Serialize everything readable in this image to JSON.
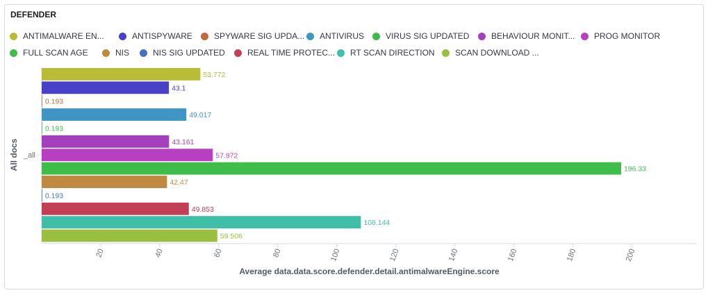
{
  "panel": {
    "title": "DEFENDER"
  },
  "legend": [
    {
      "label": "ANTIMALWARE EN...",
      "color": "#b9bc37"
    },
    {
      "label": "ANTISPYWARE",
      "color": "#4a3fc8"
    },
    {
      "label": "SPYWARE SIG UPDA...",
      "color": "#c06a3d"
    },
    {
      "label": "ANTIVIRUS",
      "color": "#3f95c3"
    },
    {
      "label": "VIRUS SIG UPDATED",
      "color": "#3fb94e"
    },
    {
      "label": "BEHAVIOUR MONIT...",
      "color": "#a43fbe"
    },
    {
      "label": "PROG MONITOR",
      "color": "#b83fc2"
    },
    {
      "label": "FULL SCAN AGE",
      "color": "#3fbd4a"
    },
    {
      "label": "NIS",
      "color": "#bf8a3f"
    },
    {
      "label": "NIS SIG UPDATED",
      "color": "#4370c2"
    },
    {
      "label": "REAL TIME PROTEC...",
      "color": "#c23f55"
    },
    {
      "label": "RT SCAN DIRECTION",
      "color": "#3fbfa8"
    },
    {
      "label": "SCAN DOWNLOAD ...",
      "color": "#98bf3f"
    }
  ],
  "chart_data": {
    "type": "bar",
    "orientation": "horizontal",
    "ylabel": "All docs",
    "category": "_all",
    "xlabel": "Average data.data.score.defender.detail.antimalwareEngine.score",
    "xlim": [
      0,
      222
    ],
    "xticks": [
      20,
      40,
      60,
      80,
      100,
      120,
      140,
      160,
      180,
      200
    ],
    "series": [
      {
        "name": "ANTIMALWARE EN...",
        "value": 53.772,
        "label": "53.772",
        "color": "#b9bc37"
      },
      {
        "name": "ANTISPYWARE",
        "value": 43.1,
        "label": "43.1",
        "color": "#4a3fc8"
      },
      {
        "name": "SPYWARE SIG UPDA...",
        "value": 0.193,
        "label": "0.193",
        "color": "#c06a3d"
      },
      {
        "name": "ANTIVIRUS",
        "value": 49.017,
        "label": "49.017",
        "color": "#3f95c3"
      },
      {
        "name": "VIRUS SIG UPDATED",
        "value": 0.193,
        "label": "0.193",
        "color": "#3fb94e"
      },
      {
        "name": "BEHAVIOUR MONIT...",
        "value": 43.161,
        "label": "43.161",
        "color": "#a43fbe"
      },
      {
        "name": "PROG MONITOR",
        "value": 57.972,
        "label": "57.972",
        "color": "#b83fc2"
      },
      {
        "name": "FULL SCAN AGE",
        "value": 196.33,
        "label": "196.33",
        "color": "#3fbd4a"
      },
      {
        "name": "NIS",
        "value": 42.47,
        "label": "42.47",
        "color": "#bf8a3f"
      },
      {
        "name": "NIS SIG UPDATED",
        "value": 0.193,
        "label": "0.193",
        "color": "#4370c2"
      },
      {
        "name": "REAL TIME PROTEC...",
        "value": 49.853,
        "label": "49.853",
        "color": "#c23f55"
      },
      {
        "name": "RT SCAN DIRECTION",
        "value": 108.144,
        "label": "108.144",
        "color": "#3fbfa8"
      },
      {
        "name": "SCAN DOWNLOAD ...",
        "value": 59.506,
        "label": "59.506",
        "color": "#98bf3f"
      }
    ],
    "grid": false,
    "legend_position": "top"
  }
}
